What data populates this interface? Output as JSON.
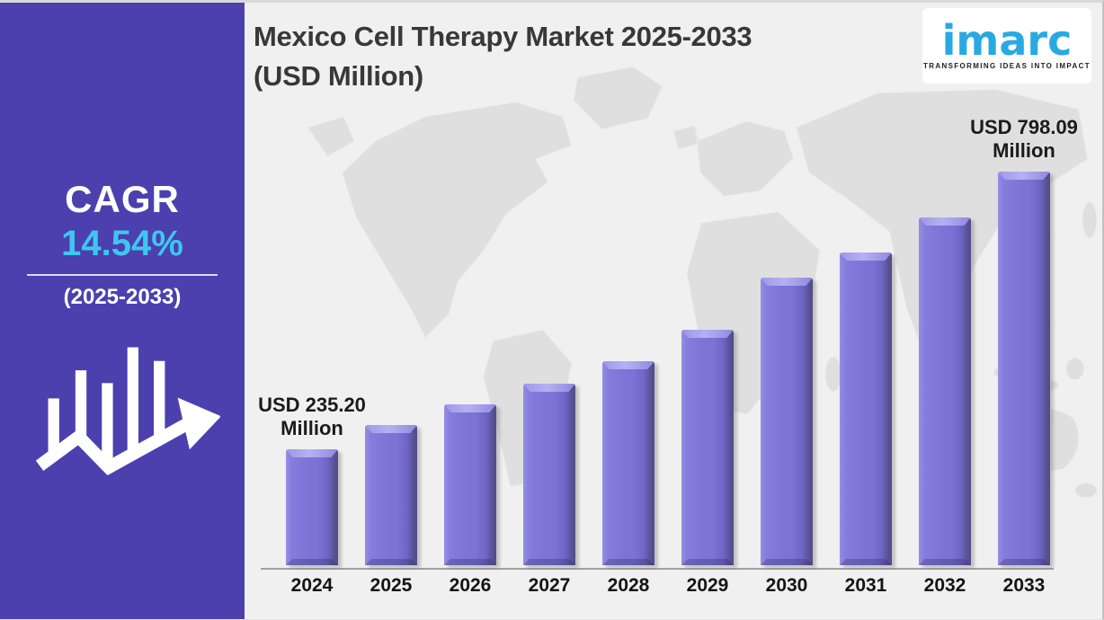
{
  "sidebar": {
    "cagr_label": "CAGR",
    "cagr_value": "14.54%",
    "cagr_period": "(2025-2033)",
    "bg_color": "#4b40ae",
    "accent_color": "#3fc6f0",
    "icon": "growth-chart-arrow-icon"
  },
  "header": {
    "title_line1": "Mexico Cell Therapy Market 2025-2033",
    "title_line2": "(USD Million)"
  },
  "logo": {
    "word": "imarc",
    "tagline": "TRANSFORMING IDEAS INTO IMPACT",
    "word_color": "#29a9e2"
  },
  "chart_data": {
    "type": "bar",
    "title": "Mexico Cell Therapy Market 2025-2033 (USD Million)",
    "unit": "USD Million",
    "categories": [
      "2024",
      "2025",
      "2026",
      "2027",
      "2028",
      "2029",
      "2030",
      "2031",
      "2032",
      "2033"
    ],
    "values": [
      235.2,
      284,
      326,
      368,
      413,
      477,
      583,
      634,
      705,
      798.09
    ],
    "labeled_values": {
      "2024": 235.2,
      "2033": 798.09
    },
    "annotations": [
      {
        "index": 0,
        "line1": "USD 235.20",
        "line2": "Million"
      },
      {
        "index": 9,
        "line1": "USD 798.09",
        "line2": "Million"
      }
    ],
    "ylim": [
      0,
      798.09
    ],
    "bar_color": "#7b73d6",
    "axis_color": "#a0a0a0",
    "grid": false,
    "legend": false,
    "background": "world-map-watermark"
  }
}
